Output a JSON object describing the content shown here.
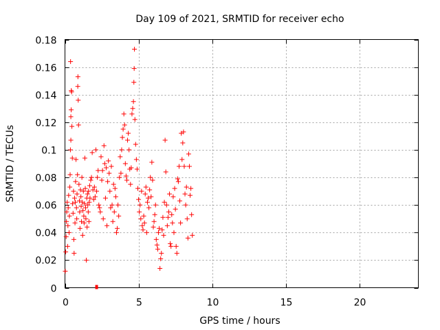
{
  "chart_data": {
    "type": "scatter",
    "title": "Day 109 of 2021, SRMTID for receiver echo",
    "xlabel": "GPS time / hours",
    "ylabel": "SRMTID / TECUs",
    "xlim": [
      0,
      24
    ],
    "ylim": [
      0,
      0.18
    ],
    "x_ticks": [
      0,
      5,
      10,
      15,
      20
    ],
    "x_tick_labels": [
      "0",
      "5",
      "10",
      "15",
      "20"
    ],
    "y_ticks": [
      0,
      0.02,
      0.04,
      0.06,
      0.08,
      0.1,
      0.12,
      0.14,
      0.16,
      0.18
    ],
    "y_tick_labels": [
      "0",
      "0.02",
      "0.04",
      "0.06",
      "0.08",
      "0.1",
      "0.12",
      "0.14",
      "0.16",
      "0.18"
    ],
    "grid": true,
    "marker": "+",
    "color": "#ff0000",
    "series": [
      {
        "name": "SRMTID",
        "points": [
          [
            0.02,
            0.012
          ],
          [
            0.05,
            0.026
          ],
          [
            0.08,
            0.037
          ],
          [
            0.1,
            0.048
          ],
          [
            0.12,
            0.055
          ],
          [
            0.15,
            0.062
          ],
          [
            0.18,
            0.03
          ],
          [
            0.2,
            0.045
          ],
          [
            0.22,
            0.058
          ],
          [
            0.25,
            0.067
          ],
          [
            0.28,
            0.04
          ],
          [
            0.3,
            0.052
          ],
          [
            0.33,
            0.073
          ],
          [
            0.35,
            0.082
          ],
          [
            0.37,
            0.1
          ],
          [
            0.4,
            0.107
          ],
          [
            0.4,
            0.124
          ],
          [
            0.42,
            0.129
          ],
          [
            0.43,
            0.143
          ],
          [
            0.45,
            0.142
          ],
          [
            0.38,
            0.164
          ],
          [
            0.47,
            0.117
          ],
          [
            0.5,
            0.094
          ],
          [
            0.52,
            0.061
          ],
          [
            0.55,
            0.054
          ],
          [
            0.58,
            0.07
          ],
          [
            0.6,
            0.035
          ],
          [
            0.62,
            0.025
          ],
          [
            0.65,
            0.065
          ],
          [
            0.68,
            0.047
          ],
          [
            0.7,
            0.062
          ],
          [
            0.72,
            0.077
          ],
          [
            0.75,
            0.093
          ],
          [
            0.78,
            0.058
          ],
          [
            0.8,
            0.05
          ],
          [
            0.82,
            0.068
          ],
          [
            0.85,
            0.082
          ],
          [
            0.87,
            0.146
          ],
          [
            0.88,
            0.153
          ],
          [
            0.9,
            0.136
          ],
          [
            0.92,
            0.118
          ],
          [
            0.95,
            0.075
          ],
          [
            0.98,
            0.063
          ],
          [
            1.0,
            0.055
          ],
          [
            1.02,
            0.043
          ],
          [
            1.05,
            0.071
          ],
          [
            1.08,
            0.066
          ],
          [
            1.1,
            0.059
          ],
          [
            1.12,
            0.048
          ],
          [
            1.15,
            0.08
          ],
          [
            1.18,
            0.062
          ],
          [
            1.2,
            0.038
          ],
          [
            1.22,
            0.056
          ],
          [
            1.25,
            0.07
          ],
          [
            1.28,
            0.052
          ],
          [
            1.3,
            0.047
          ],
          [
            1.33,
            0.061
          ],
          [
            1.35,
            0.094
          ],
          [
            1.38,
            0.072
          ],
          [
            1.4,
            0.058
          ],
          [
            1.42,
            0.05
          ],
          [
            1.45,
            0.02
          ],
          [
            1.48,
            0.065
          ],
          [
            1.5,
            0.044
          ],
          [
            1.53,
            0.068
          ],
          [
            1.55,
            0.06
          ],
          [
            1.58,
            0.055
          ],
          [
            1.6,
            0.07
          ],
          [
            1.63,
            0.048
          ],
          [
            1.65,
            0.062
          ],
          [
            1.68,
            0.074
          ],
          [
            1.7,
            0.065
          ],
          [
            1.75,
            0.078
          ],
          [
            1.8,
            0.08
          ],
          [
            1.85,
            0.098
          ],
          [
            1.9,
            0.071
          ],
          [
            1.95,
            0.064
          ],
          [
            2.0,
            0.073
          ],
          [
            2.05,
            0.066
          ],
          [
            2.1,
            0.1
          ],
          [
            2.15,
            0.07
          ],
          [
            2.2,
            0.08
          ],
          [
            2.25,
            0.085
          ],
          [
            2.3,
            0.06
          ],
          [
            2.35,
            0.058
          ],
          [
            2.4,
            0.055
          ],
          [
            2.45,
            0.095
          ],
          [
            2.5,
            0.078
          ],
          [
            2.55,
            0.085
          ],
          [
            2.6,
            0.05
          ],
          [
            2.65,
            0.103
          ],
          [
            2.7,
            0.09
          ],
          [
            2.75,
            0.065
          ],
          [
            2.8,
            0.087
          ],
          [
            2.85,
            0.045
          ],
          [
            2.9,
            0.077
          ],
          [
            2.95,
            0.092
          ],
          [
            3.0,
            0.083
          ],
          [
            3.05,
            0.07
          ],
          [
            3.1,
            0.058
          ],
          [
            3.15,
            0.088
          ],
          [
            3.2,
            0.06
          ],
          [
            3.25,
            0.048
          ],
          [
            3.3,
            0.075
          ],
          [
            3.35,
            0.055
          ],
          [
            3.4,
            0.072
          ],
          [
            3.45,
            0.066
          ],
          [
            3.5,
            0.04
          ],
          [
            3.55,
            0.043
          ],
          [
            3.6,
            0.06
          ],
          [
            3.65,
            0.052
          ],
          [
            3.7,
            0.08
          ],
          [
            3.75,
            0.095
          ],
          [
            3.8,
            0.083
          ],
          [
            3.85,
            0.1
          ],
          [
            3.9,
            0.109
          ],
          [
            3.95,
            0.115
          ],
          [
            4.0,
            0.126
          ],
          [
            4.05,
            0.118
          ],
          [
            4.1,
            0.09
          ],
          [
            4.15,
            0.081
          ],
          [
            4.2,
            0.078
          ],
          [
            4.25,
            0.107
          ],
          [
            4.3,
            0.112
          ],
          [
            4.35,
            0.1
          ],
          [
            4.4,
            0.086
          ],
          [
            4.45,
            0.075
          ],
          [
            4.5,
            0.087
          ],
          [
            4.55,
            0.126
          ],
          [
            4.6,
            0.13
          ],
          [
            4.65,
            0.135
          ],
          [
            4.68,
            0.149
          ],
          [
            4.7,
            0.159
          ],
          [
            4.72,
            0.173
          ],
          [
            4.75,
            0.122
          ],
          [
            4.8,
            0.104
          ],
          [
            4.85,
            0.093
          ],
          [
            4.9,
            0.086
          ],
          [
            4.95,
            0.072
          ],
          [
            5.0,
            0.064
          ],
          [
            5.05,
            0.055
          ],
          [
            5.1,
            0.06
          ],
          [
            5.15,
            0.05
          ],
          [
            5.2,
            0.07
          ],
          [
            5.25,
            0.045
          ],
          [
            5.3,
            0.042
          ],
          [
            5.35,
            0.052
          ],
          [
            5.4,
            0.047
          ],
          [
            5.45,
            0.068
          ],
          [
            5.5,
            0.073
          ],
          [
            5.55,
            0.04
          ],
          [
            5.6,
            0.062
          ],
          [
            5.65,
            0.065
          ],
          [
            5.7,
            0.058
          ],
          [
            5.75,
            0.071
          ],
          [
            5.8,
            0.08
          ],
          [
            5.85,
            0.066
          ],
          [
            5.9,
            0.091
          ],
          [
            5.95,
            0.078
          ],
          [
            6.0,
            0.044
          ],
          [
            6.05,
            0.048
          ],
          [
            6.1,
            0.053
          ],
          [
            6.15,
            0.06
          ],
          [
            6.2,
            0.035
          ],
          [
            6.25,
            0.031
          ],
          [
            6.3,
            0.028
          ],
          [
            6.35,
            0.04
          ],
          [
            6.4,
            0.043
          ],
          [
            6.45,
            0.014
          ],
          [
            6.5,
            0.021
          ],
          [
            6.55,
            0.025
          ],
          [
            6.6,
            0.042
          ],
          [
            6.65,
            0.051
          ],
          [
            6.7,
            0.038
          ],
          [
            6.75,
            0.062
          ],
          [
            6.8,
            0.107
          ],
          [
            6.85,
            0.084
          ],
          [
            6.9,
            0.06
          ],
          [
            6.95,
            0.045
          ],
          [
            7.0,
            0.051
          ],
          [
            7.05,
            0.055
          ],
          [
            7.1,
            0.068
          ],
          [
            7.15,
            0.032
          ],
          [
            7.2,
            0.03
          ],
          [
            7.25,
            0.053
          ],
          [
            7.3,
            0.047
          ],
          [
            7.35,
            0.066
          ],
          [
            7.4,
            0.04
          ],
          [
            7.45,
            0.072
          ],
          [
            7.5,
            0.057
          ],
          [
            7.55,
            0.03
          ],
          [
            7.6,
            0.025
          ],
          [
            7.65,
            0.079
          ],
          [
            7.7,
            0.077
          ],
          [
            7.75,
            0.088
          ],
          [
            7.8,
            0.063
          ],
          [
            7.85,
            0.047
          ],
          [
            7.9,
            0.112
          ],
          [
            7.95,
            0.093
          ],
          [
            8.0,
            0.105
          ],
          [
            8.05,
            0.113
          ],
          [
            8.1,
            0.088
          ],
          [
            8.15,
            0.068
          ],
          [
            8.2,
            0.06
          ],
          [
            8.25,
            0.073
          ],
          [
            8.3,
            0.05
          ],
          [
            8.35,
            0.036
          ],
          [
            8.4,
            0.097
          ],
          [
            8.45,
            0.088
          ],
          [
            8.5,
            0.067
          ],
          [
            8.55,
            0.072
          ],
          [
            8.6,
            0.053
          ],
          [
            8.65,
            0.038
          ]
        ]
      }
    ],
    "outlier_points": [
      [
        2.15,
        0.0
      ]
    ]
  }
}
